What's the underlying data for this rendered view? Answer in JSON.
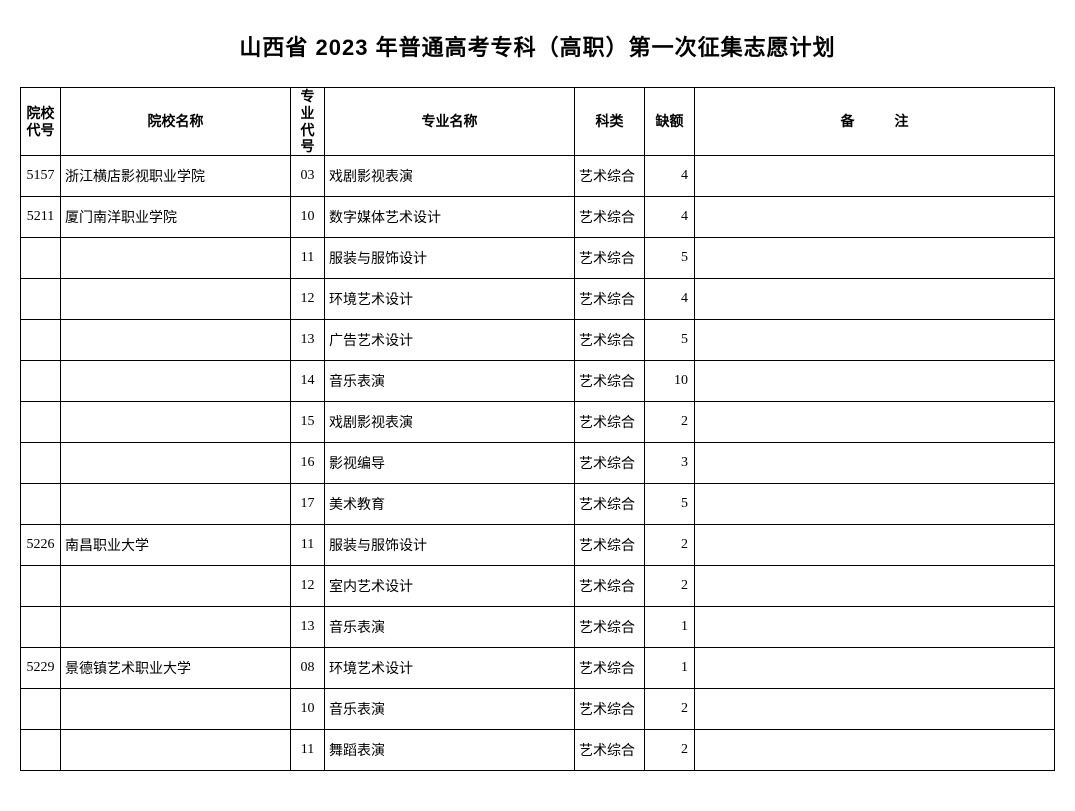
{
  "title": "山西省 2023 年普通高考专科（高职）第一次征集志愿计划",
  "columns": {
    "school_code": "院校代号",
    "school_name": "院校名称",
    "major_code": "专业代号",
    "major_name": "专业名称",
    "category": "科类",
    "vacancy": "缺额",
    "remark_a": "备",
    "remark_b": "注"
  },
  "rows": [
    {
      "school_code": "5157",
      "school_name": "浙江横店影视职业学院",
      "major_code": "03",
      "major_name": "戏剧影视表演",
      "category": "艺术综合",
      "vacancy": "4",
      "remark": ""
    },
    {
      "school_code": "5211",
      "school_name": "厦门南洋职业学院",
      "major_code": "10",
      "major_name": "数字媒体艺术设计",
      "category": "艺术综合",
      "vacancy": "4",
      "remark": ""
    },
    {
      "school_code": "",
      "school_name": "",
      "major_code": "11",
      "major_name": "服装与服饰设计",
      "category": "艺术综合",
      "vacancy": "5",
      "remark": ""
    },
    {
      "school_code": "",
      "school_name": "",
      "major_code": "12",
      "major_name": "环境艺术设计",
      "category": "艺术综合",
      "vacancy": "4",
      "remark": ""
    },
    {
      "school_code": "",
      "school_name": "",
      "major_code": "13",
      "major_name": "广告艺术设计",
      "category": "艺术综合",
      "vacancy": "5",
      "remark": ""
    },
    {
      "school_code": "",
      "school_name": "",
      "major_code": "14",
      "major_name": "音乐表演",
      "category": "艺术综合",
      "vacancy": "10",
      "remark": ""
    },
    {
      "school_code": "",
      "school_name": "",
      "major_code": "15",
      "major_name": "戏剧影视表演",
      "category": "艺术综合",
      "vacancy": "2",
      "remark": ""
    },
    {
      "school_code": "",
      "school_name": "",
      "major_code": "16",
      "major_name": "影视编导",
      "category": "艺术综合",
      "vacancy": "3",
      "remark": ""
    },
    {
      "school_code": "",
      "school_name": "",
      "major_code": "17",
      "major_name": "美术教育",
      "category": "艺术综合",
      "vacancy": "5",
      "remark": ""
    },
    {
      "school_code": "5226",
      "school_name": "南昌职业大学",
      "major_code": "11",
      "major_name": "服装与服饰设计",
      "category": "艺术综合",
      "vacancy": "2",
      "remark": ""
    },
    {
      "school_code": "",
      "school_name": "",
      "major_code": "12",
      "major_name": "室内艺术设计",
      "category": "艺术综合",
      "vacancy": "2",
      "remark": ""
    },
    {
      "school_code": "",
      "school_name": "",
      "major_code": "13",
      "major_name": "音乐表演",
      "category": "艺术综合",
      "vacancy": "1",
      "remark": ""
    },
    {
      "school_code": "5229",
      "school_name": "景德镇艺术职业大学",
      "major_code": "08",
      "major_name": "环境艺术设计",
      "category": "艺术综合",
      "vacancy": "1",
      "remark": ""
    },
    {
      "school_code": "",
      "school_name": "",
      "major_code": "10",
      "major_name": "音乐表演",
      "category": "艺术综合",
      "vacancy": "2",
      "remark": ""
    },
    {
      "school_code": "",
      "school_name": "",
      "major_code": "11",
      "major_name": "舞蹈表演",
      "category": "艺术综合",
      "vacancy": "2",
      "remark": ""
    }
  ]
}
